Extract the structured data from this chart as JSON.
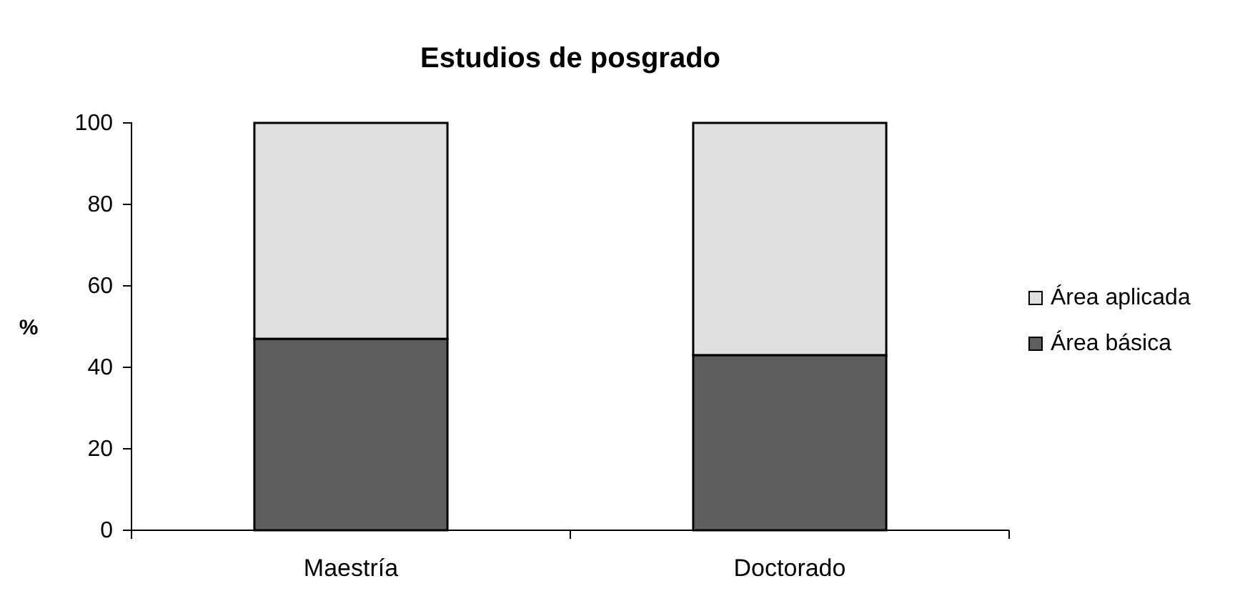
{
  "chart_data": {
    "type": "bar",
    "title": "Estudios de posgrado",
    "ylabel": "%",
    "categories": [
      "Maestría",
      "Doctorado"
    ],
    "stacked": true,
    "series": [
      {
        "name": "Área básica",
        "color": "#5e5e5e",
        "values": [
          47,
          43
        ]
      },
      {
        "name": "Área aplicada",
        "color": "#e0e0e0",
        "values": [
          53,
          57
        ]
      }
    ],
    "ylim": [
      0,
      100
    ],
    "yticks": [
      0,
      20,
      40,
      60,
      80,
      100
    ],
    "grid": false,
    "legend": "right"
  }
}
